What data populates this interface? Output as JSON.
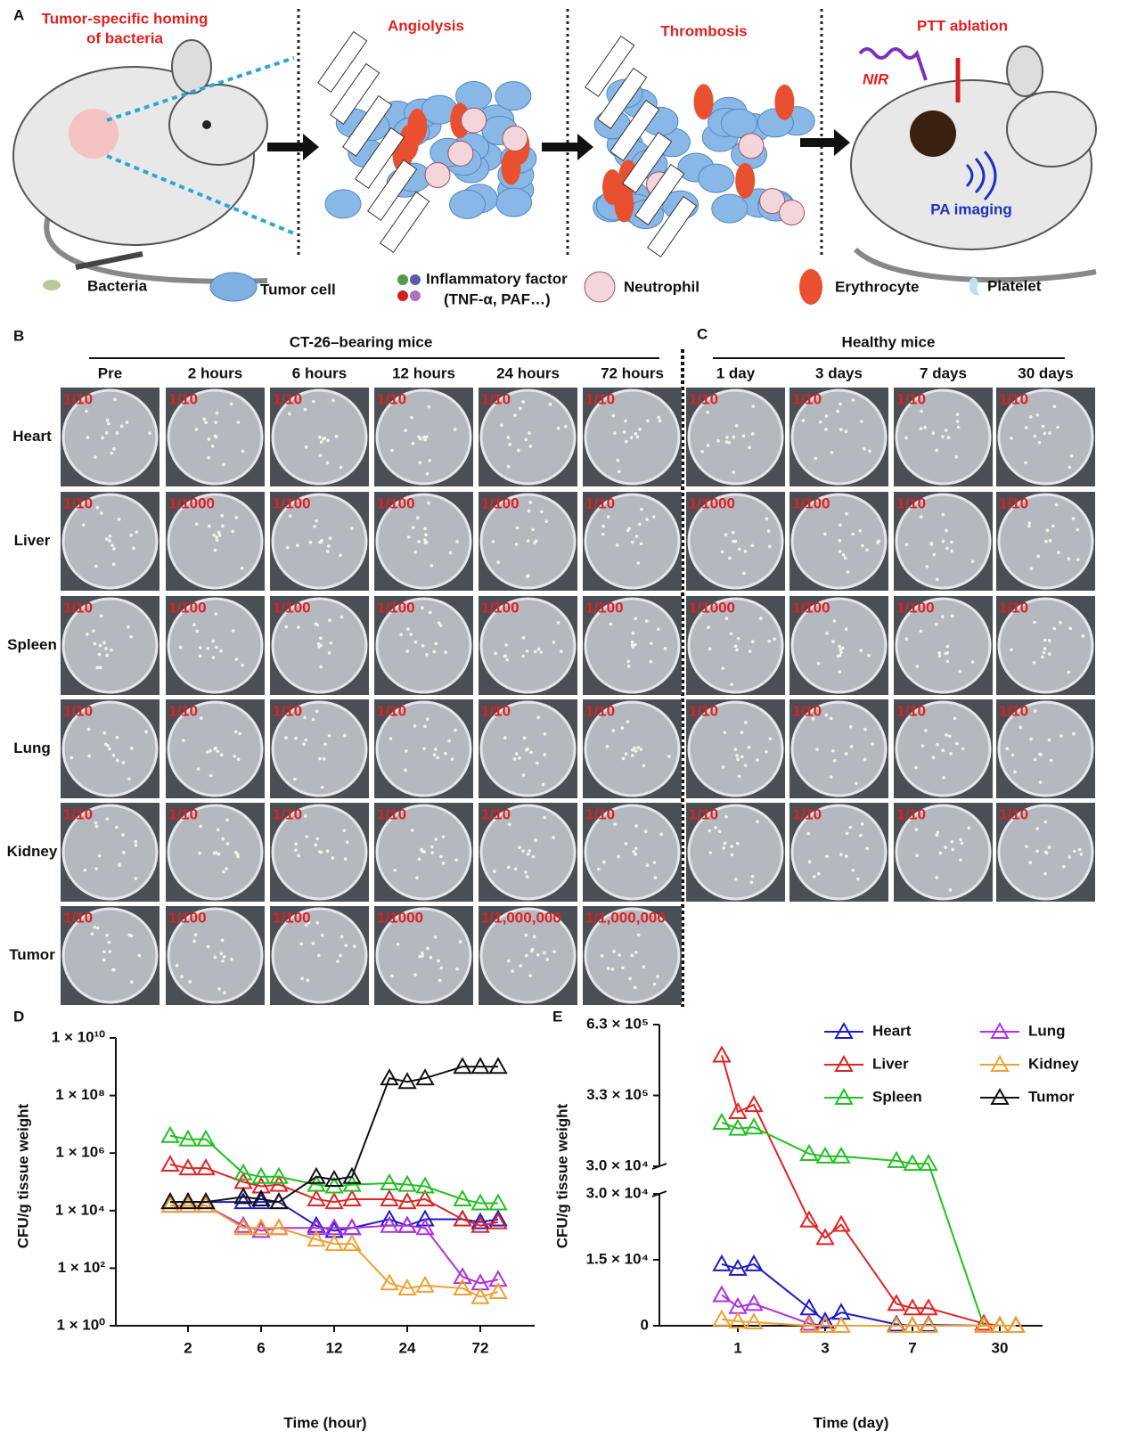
{
  "panel_a": {
    "label": "A",
    "homing_title": [
      "Tumor-specific homing",
      "of bacteria"
    ],
    "stage_titles": [
      "Angiolysis",
      "Thrombosis",
      "PTT ablation"
    ],
    "nir": "NIR",
    "pa": "PA imaging",
    "legend": [
      "Bacteria",
      "Tumor  cell",
      "Inflammatory factor",
      "(TNF-α, PAF…)",
      "Neutrophil",
      "Erythrocyte",
      "Platelet"
    ]
  },
  "panel_b": {
    "label": "B",
    "group": "CT-26–bearing mice",
    "columns": [
      "Pre",
      "2 hours",
      "6 hours",
      "12 hours",
      "24 hours",
      "72 hours"
    ],
    "rows": [
      "Heart",
      "Liver",
      "Spleen",
      "Lung",
      "Kidney",
      "Tumor"
    ],
    "dilutions": [
      [
        "1/10",
        "1/10",
        "1/10",
        "1/10",
        "1/10",
        "1/10"
      ],
      [
        "1/10",
        "1/1000",
        "1/100",
        "1/100",
        "1/100",
        "1/10"
      ],
      [
        "1/10",
        "1/100",
        "1/100",
        "1/100",
        "1/100",
        "1/100"
      ],
      [
        "1/10",
        "1/10",
        "1/10",
        "1/10",
        "1/10",
        "1/10"
      ],
      [
        "1/10",
        "1/10",
        "1/10",
        "1/10",
        "1/10",
        "1/10"
      ],
      [
        "1/10",
        "1/100",
        "1/100",
        "1/1000",
        "1/1,000,000",
        "1/1,000,000"
      ]
    ]
  },
  "panel_c": {
    "label": "C",
    "group": "Healthy mice",
    "columns": [
      "1 day",
      "3 days",
      "7 days",
      "30 days"
    ],
    "dilutions": [
      [
        "1/10",
        "1/10",
        "1/10",
        "1/10"
      ],
      [
        "1/1000",
        "1/100",
        "1/10",
        "1/10"
      ],
      [
        "1/1000",
        "1/100",
        "1/100",
        "1/10"
      ],
      [
        "1/10",
        "1/10",
        "1/10",
        "1/10"
      ],
      [
        "1/10",
        "1/10",
        "1/10",
        "1/10"
      ]
    ]
  },
  "chart_data": [
    {
      "type": "line",
      "panel": "D",
      "ylabel": "CFU/g tissue weight",
      "xlabel": "Time (hour)",
      "categories": [
        "2",
        "6",
        "12",
        "24",
        "72"
      ],
      "log_y": true,
      "ylim": [
        1,
        10000000000
      ],
      "yticks": [
        {
          "value": 1,
          "label": "1 × 10⁰"
        },
        {
          "value": 100,
          "label": "1 × 10²"
        },
        {
          "value": 10000,
          "label": "1 × 10⁴"
        },
        {
          "value": 1000000,
          "label": "1 × 10⁶"
        },
        {
          "value": 100000000,
          "label": "1 × 10⁸"
        },
        {
          "value": 10000000000,
          "label": "1 × 10¹⁰"
        }
      ],
      "series": [
        {
          "name": "Heart",
          "color": "#1c1cc8",
          "values": [
            [
              20000,
              20000,
              20000
            ],
            [
              20000,
              20000,
              20000
            ],
            [
              3000,
              2000,
              2500
            ],
            [
              5000,
              3000,
              5000
            ],
            [
              5000,
              4000,
              5000
            ]
          ]
        },
        {
          "name": "Liver",
          "color": "#e02424",
          "values": [
            [
              400000,
              300000,
              300000
            ],
            [
              100000,
              70000,
              80000
            ],
            [
              25000,
              20000,
              25000
            ],
            [
              25000,
              20000,
              25000
            ],
            [
              5000,
              3000,
              4000
            ]
          ]
        },
        {
          "name": "Spleen",
          "color": "#22c022",
          "values": [
            [
              4000000,
              3000000,
              3000000
            ],
            [
              200000,
              150000,
              150000
            ],
            [
              80000,
              70000,
              80000
            ],
            [
              90000,
              80000,
              70000
            ],
            [
              25000,
              18000,
              18000
            ]
          ]
        },
        {
          "name": "Lung",
          "color": "#b030e0",
          "values": [
            [
              15000,
              15000,
              15000
            ],
            [
              3000,
              2000,
              2500
            ],
            [
              2500,
              2500,
              2500
            ],
            [
              3000,
              3000,
              2500
            ],
            [
              50,
              30,
              40
            ]
          ]
        },
        {
          "name": "Kidney",
          "color": "#f0a030",
          "values": [
            [
              15000,
              15000,
              15000
            ],
            [
              2500,
              2500,
              2500
            ],
            [
              1000,
              700,
              700
            ],
            [
              30,
              20,
              25
            ],
            [
              20,
              10,
              15
            ]
          ]
        },
        {
          "name": "Tumor",
          "color": "#111111",
          "values": [
            [
              20000,
              20000,
              20000
            ],
            [
              30000,
              25000,
              20000
            ],
            [
              150000,
              120000,
              150000
            ],
            [
              400000000,
              300000000,
              400000000
            ],
            [
              1000000000,
              1000000000,
              1000000000
            ]
          ]
        }
      ]
    },
    {
      "type": "line",
      "panel": "E",
      "ylabel": "CFU/g tissue weight",
      "xlabel": "Time (day)",
      "categories": [
        "1",
        "3",
        "7",
        "30"
      ],
      "legend": true,
      "y_segments": [
        {
          "ylim": [
            0,
            30000
          ],
          "yticks": [
            0,
            {
              "value": 15000,
              "label": "1.5 × 10⁴"
            },
            {
              "value": 30000,
              "label": "3.0 × 10⁴"
            }
          ]
        },
        {
          "ylim": [
            30000,
            630000
          ],
          "yticks": [
            {
              "value": 30000,
              "label": "3.0 × 10⁴"
            },
            {
              "value": 330000,
              "label": "3.3 × 10⁵"
            },
            {
              "value": 630000,
              "label": "6.3 × 10⁵"
            }
          ]
        }
      ],
      "series": [
        {
          "name": "Heart",
          "color": "#1c1cc8",
          "values": [
            [
              14000,
              13000,
              14000
            ],
            [
              4000,
              1000,
              3000
            ],
            [
              300,
              0,
              200
            ],
            [
              0,
              0,
              0
            ]
          ]
        },
        {
          "name": "Liver",
          "color": "#e02424",
          "values": [
            [
              500000,
              260000,
              290000
            ],
            [
              24000,
              20000,
              23000
            ],
            [
              5000,
              4000,
              4000
            ],
            [
              500,
              0,
              0
            ]
          ]
        },
        {
          "name": "Spleen",
          "color": "#22c022",
          "values": [
            [
              215000,
              190000,
              195000
            ],
            [
              83000,
              72000,
              72000
            ],
            [
              53000,
              41000,
              41000
            ],
            [
              0,
              0,
              0
            ]
          ]
        },
        {
          "name": "Lung",
          "color": "#b030e0",
          "values": [
            [
              7000,
              4300,
              5000
            ],
            [
              500,
              0,
              0
            ],
            [
              0,
              0,
              0
            ],
            [
              0,
              0,
              0
            ]
          ]
        },
        {
          "name": "Kidney",
          "color": "#f0a030",
          "values": [
            [
              1500,
              1000,
              800
            ],
            [
              0,
              0,
              0
            ],
            [
              0,
              0,
              0
            ],
            [
              0,
              0,
              0
            ]
          ]
        },
        {
          "name": "Tumor",
          "color": "#111111",
          "values": [
            [
              null,
              null,
              null
            ],
            [
              null,
              null,
              null
            ],
            [
              null,
              null,
              null
            ],
            [
              null,
              null,
              null
            ]
          ]
        }
      ]
    }
  ]
}
